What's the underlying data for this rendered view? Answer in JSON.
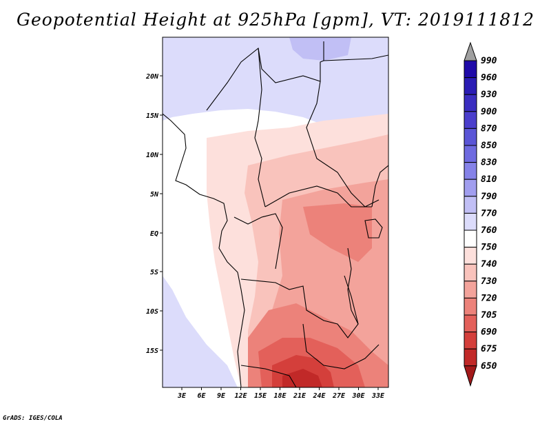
{
  "title": "Geopotential Height at 925hPa [gpm], VT: 2019111812",
  "footer": "GrADS: IGES/COLA",
  "map": {
    "lat_ticks": [
      "20N",
      "15N",
      "10N",
      "5N",
      "EQ",
      "5S",
      "10S",
      "15S"
    ],
    "lon_ticks": [
      "3E",
      "6E",
      "9E",
      "12E",
      "15E",
      "18E",
      "21E",
      "24E",
      "27E",
      "30E",
      "33E"
    ]
  },
  "colorbar": {
    "levels": [
      "990",
      "960",
      "930",
      "900",
      "870",
      "850",
      "830",
      "810",
      "790",
      "770",
      "760",
      "750",
      "740",
      "730",
      "720",
      "705",
      "690",
      "675",
      "650"
    ],
    "colors": [
      "#1f0aa8",
      "#2a1cb4",
      "#3a2dc0",
      "#4a3ecc",
      "#5a55d6",
      "#6e6ae0",
      "#8582e8",
      "#a19eef",
      "#c1bff5",
      "#dcdcfb",
      "#ffffff",
      "#fde0dc",
      "#f9c3bc",
      "#f3a39b",
      "#ec827a",
      "#e3605a",
      "#d43f3b",
      "#c12928",
      "#a3191a"
    ],
    "top_arrow_color": "#a0a0a0"
  }
}
